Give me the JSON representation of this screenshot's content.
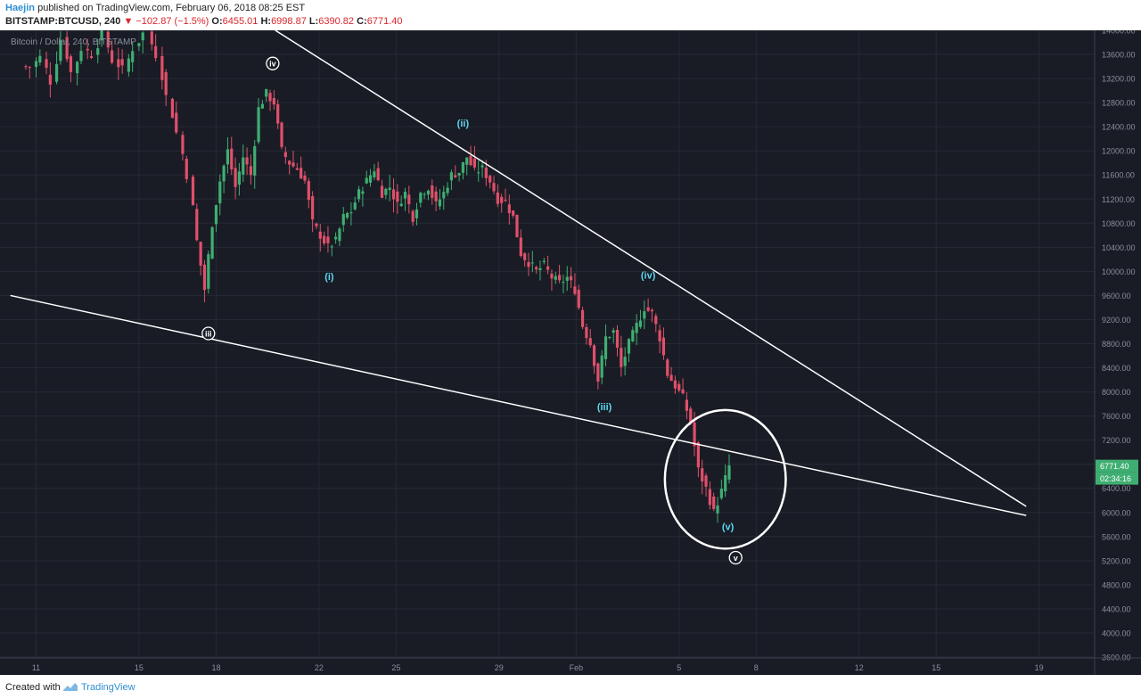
{
  "header": {
    "author": "Haejin",
    "published_text": "published on TradingView.com, February 06, 2018 08:25 EST",
    "symbol": "BITSTAMP:BTCUSD, 240",
    "change": "▼ −102.87 (−1.5%)",
    "o_label": "O:",
    "o_value": "6455.01",
    "h_label": "H:",
    "h_value": "6998.87",
    "l_label": "L:",
    "l_value": "6390.82",
    "c_label": "C:",
    "c_value": "6771.40"
  },
  "footer": {
    "created_with": "Created with",
    "brand": "TradingView"
  },
  "colors": {
    "background": "#191c25",
    "up": "#3fae72",
    "down": "#e0506a",
    "line": "#ffffff",
    "wave_label": "#5ed6f0",
    "axis_text": "#8a8f9c"
  },
  "chart_data": {
    "type": "candlestick",
    "title": "Bitcoin / Dollar, 240, BITSTAMP",
    "ylim": [
      3600,
      14000
    ],
    "y_ticks": [
      "14000.00",
      "13600.00",
      "13200.00",
      "12800.00",
      "12400.00",
      "12000.00",
      "11600.00",
      "11200.00",
      "10800.00",
      "10400.00",
      "10000.00",
      "9600.00",
      "9200.00",
      "8800.00",
      "8400.00",
      "8000.00",
      "7600.00",
      "7200.00",
      "6800.00",
      "6400.00",
      "6000.00",
      "5600.00",
      "5200.00",
      "4800.00",
      "4400.00",
      "4000.00",
      "3600.00"
    ],
    "x_ticks": [
      "11",
      "15",
      "18",
      "22",
      "25",
      "29",
      "Feb",
      "5",
      "8",
      "12",
      "15",
      "19"
    ],
    "last_price": "6771.40",
    "countdown": "02:34:16",
    "price_path": [
      [
        10.9,
        13400
      ],
      [
        11.3,
        13550
      ],
      [
        11.7,
        13150
      ],
      [
        12.1,
        13850
      ],
      [
        12.5,
        13300
      ],
      [
        12.9,
        13700
      ],
      [
        13.3,
        13600
      ],
      [
        13.7,
        13950
      ],
      [
        14.1,
        13500
      ],
      [
        14.5,
        13350
      ],
      [
        14.9,
        13700
      ],
      [
        15.3,
        13950
      ],
      [
        15.8,
        13600
      ],
      [
        16.2,
        12900
      ],
      [
        16.6,
        12300
      ],
      [
        17.0,
        11600
      ],
      [
        17.4,
        10500
      ],
      [
        17.7,
        9700
      ],
      [
        18.0,
        10800
      ],
      [
        18.3,
        11500
      ],
      [
        18.6,
        12000
      ],
      [
        18.9,
        11400
      ],
      [
        19.2,
        11900
      ],
      [
        19.5,
        11600
      ],
      [
        19.8,
        12700
      ],
      [
        20.1,
        12950
      ],
      [
        20.4,
        12800
      ],
      [
        20.7,
        12000
      ],
      [
        21.0,
        11800
      ],
      [
        21.3,
        11700
      ],
      [
        21.6,
        11500
      ],
      [
        21.9,
        10800
      ],
      [
        22.2,
        10600
      ],
      [
        22.5,
        10400
      ],
      [
        22.8,
        10500
      ],
      [
        23.1,
        10900
      ],
      [
        23.4,
        11000
      ],
      [
        23.7,
        11300
      ],
      [
        24.0,
        11500
      ],
      [
        24.3,
        11700
      ],
      [
        24.6,
        11300
      ],
      [
        24.9,
        11400
      ],
      [
        25.2,
        11100
      ],
      [
        25.5,
        11300
      ],
      [
        25.8,
        10900
      ],
      [
        26.1,
        11300
      ],
      [
        26.4,
        11400
      ],
      [
        26.7,
        11100
      ],
      [
        27.0,
        11300
      ],
      [
        27.3,
        11600
      ],
      [
        27.6,
        11650
      ],
      [
        27.9,
        11900
      ],
      [
        28.2,
        11650
      ],
      [
        28.5,
        11700
      ],
      [
        28.8,
        11500
      ],
      [
        29.1,
        11200
      ],
      [
        29.4,
        11150
      ],
      [
        29.7,
        10900
      ],
      [
        30.0,
        10300
      ],
      [
        30.3,
        10150
      ],
      [
        30.6,
        10000
      ],
      [
        30.9,
        10100
      ],
      [
        31.2,
        9900
      ],
      [
        31.5,
        9800
      ],
      [
        31.8,
        9900
      ],
      [
        32.1,
        9700
      ],
      [
        32.4,
        9100
      ],
      [
        32.7,
        8800
      ],
      [
        33.0,
        8200
      ],
      [
        33.3,
        8900
      ],
      [
        33.6,
        9000
      ],
      [
        33.9,
        8400
      ],
      [
        34.2,
        8800
      ],
      [
        34.5,
        9100
      ],
      [
        34.8,
        9400
      ],
      [
        35.1,
        9300
      ],
      [
        35.4,
        8900
      ],
      [
        35.7,
        8300
      ],
      [
        36.0,
        8100
      ],
      [
        36.3,
        7900
      ],
      [
        36.6,
        7500
      ],
      [
        36.9,
        6700
      ],
      [
        37.2,
        6400
      ],
      [
        37.5,
        6000
      ],
      [
        37.8,
        6350
      ],
      [
        38.1,
        6771
      ]
    ],
    "trendlines": [
      {
        "points": [
          [
            20.3,
            14000
          ],
          [
            49.5,
            6100
          ]
        ]
      },
      {
        "points": [
          [
            10.0,
            9600
          ],
          [
            49.5,
            5950
          ]
        ]
      }
    ],
    "wave_labels": [
      {
        "text": "(i)",
        "x": 22.4,
        "y": 9860,
        "color": "cyan"
      },
      {
        "text": "(ii)",
        "x": 27.6,
        "y": 12400,
        "color": "cyan"
      },
      {
        "text": "(iii)",
        "x": 33.1,
        "y": 7700,
        "color": "cyan"
      },
      {
        "text": "(iv)",
        "x": 34.8,
        "y": 9880,
        "color": "cyan"
      },
      {
        "text": "(v)",
        "x": 37.9,
        "y": 5710,
        "color": "cyan"
      },
      {
        "text": "iv",
        "x": 20.2,
        "y": 13450,
        "color": "circle"
      },
      {
        "text": "iii",
        "x": 17.7,
        "y": 8970,
        "color": "circle"
      },
      {
        "text": "v",
        "x": 38.2,
        "y": 5250,
        "color": "circle"
      }
    ],
    "highlight_circle": {
      "x": 37.8,
      "y": 6550,
      "rx_days": 2.35,
      "ry_price": 1150
    }
  }
}
